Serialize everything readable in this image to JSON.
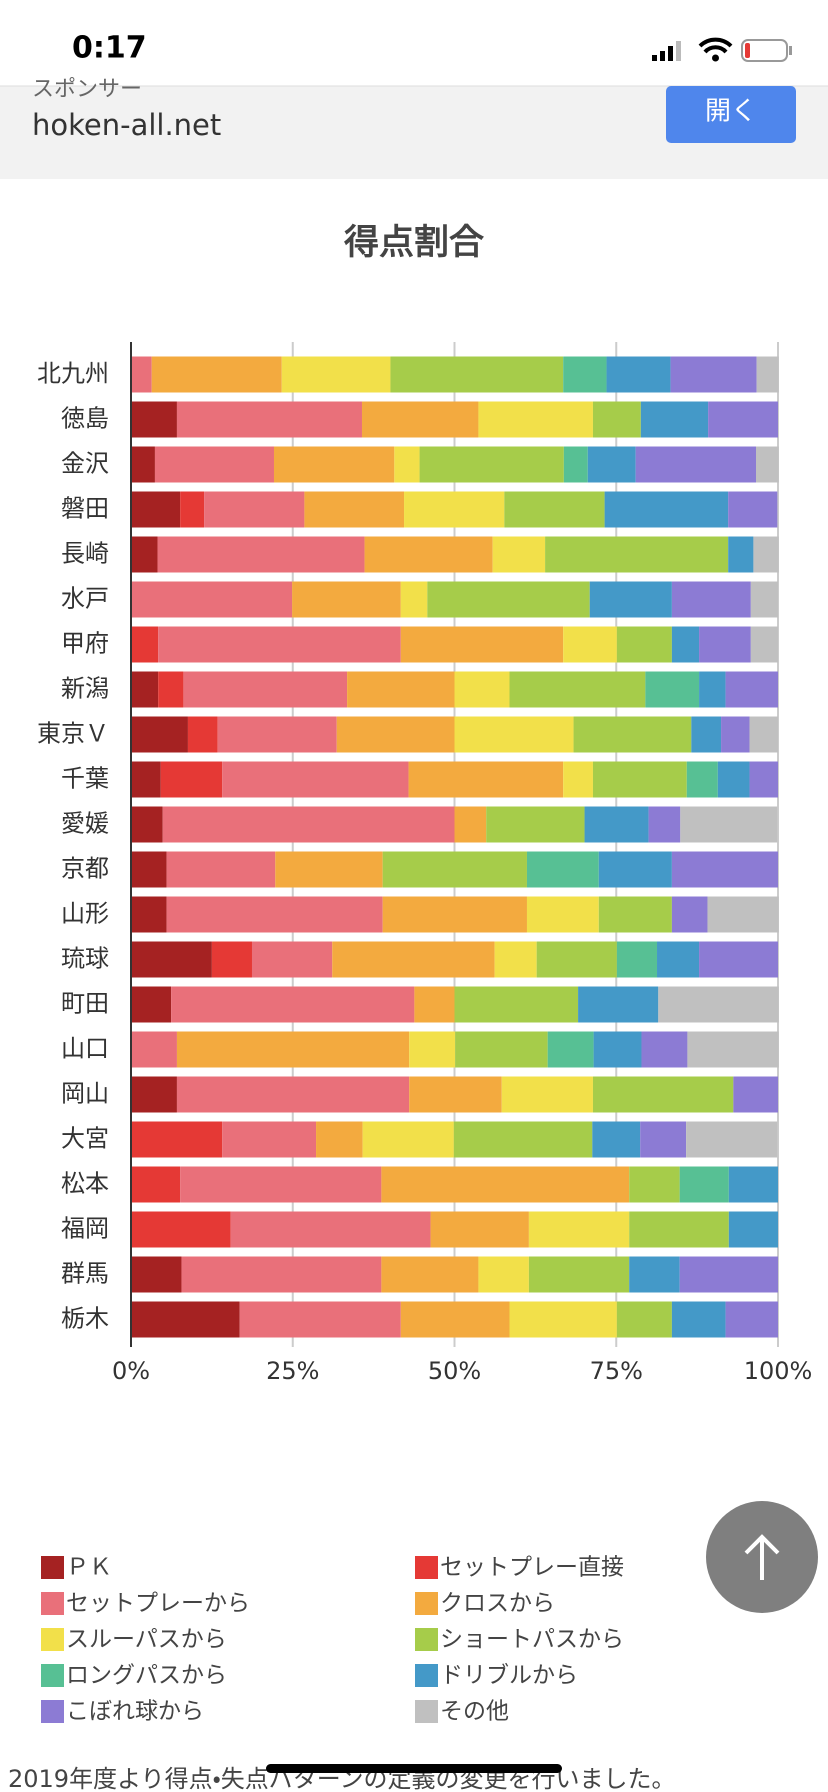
{
  "status_bar": {
    "time": "0:17"
  },
  "ad": {
    "sponsor_label": "スポンサー",
    "domain": "hoken-all.net",
    "button": "開く"
  },
  "chart_data": {
    "type": "bar",
    "orientation": "horizontal",
    "stacked": true,
    "title": "得点割合",
    "categories": [
      "北九州",
      "徳島",
      "金沢",
      "磐田",
      "長崎",
      "水戸",
      "甲府",
      "新潟",
      "東京Ｖ",
      "千葉",
      "愛媛",
      "京都",
      "山形",
      "琉球",
      "町田",
      "山口",
      "岡山",
      "大宮",
      "松本",
      "福岡",
      "群馬",
      "栃木"
    ],
    "series": [
      {
        "name": "ＰＫ",
        "color": "#a52222",
        "values": [
          0,
          7.1,
          3.7,
          7.6,
          4.1,
          0,
          0,
          4.2,
          8.8,
          4.6,
          4.9,
          5.5,
          5.5,
          12.5,
          6.2,
          0,
          7.1,
          0,
          0,
          0,
          7.8,
          16.8
        ]
      },
      {
        "name": "セットプレー直接",
        "color": "#e53935",
        "values": [
          0,
          0,
          0,
          3.7,
          0,
          0,
          4.2,
          3.9,
          4.6,
          9.5,
          0,
          0,
          0,
          6.2,
          0,
          0,
          0,
          14.1,
          7.6,
          15.4,
          0,
          0
        ]
      },
      {
        "name": "セットプレーから",
        "color": "#e9707a",
        "values": [
          3.2,
          28.6,
          18.4,
          15.5,
          32.0,
          24.9,
          37.5,
          25.3,
          18.4,
          28.8,
          45.1,
          16.8,
          33.4,
          12.4,
          37.6,
          7.1,
          35.9,
          14.5,
          31.1,
          30.9,
          30.9,
          24.9
        ]
      },
      {
        "name": "クロスから",
        "color": "#f3aa3f",
        "values": [
          20.1,
          18.0,
          18.6,
          15.4,
          19.8,
          16.8,
          25.1,
          16.6,
          18.2,
          23.9,
          4.9,
          16.6,
          22.3,
          25.1,
          6.2,
          35.9,
          14.3,
          7.2,
          38.3,
          15.2,
          15.0,
          16.8
        ]
      },
      {
        "name": "スルーパスから",
        "color": "#f2e04a",
        "values": [
          16.8,
          17.7,
          3.9,
          15.5,
          8.1,
          4.1,
          8.3,
          8.5,
          18.4,
          4.6,
          0,
          0,
          11.1,
          6.5,
          0,
          7.1,
          14.1,
          14.1,
          0,
          15.5,
          7.8,
          16.6
        ]
      },
      {
        "name": "ショートパスから",
        "color": "#a6cc4a",
        "values": [
          26.7,
          7.4,
          22.3,
          15.5,
          28.3,
          25.1,
          8.5,
          21.0,
          18.2,
          14.5,
          15.2,
          22.3,
          11.3,
          12.4,
          19.1,
          14.3,
          21.7,
          21.4,
          7.8,
          15.4,
          15.5,
          8.5
        ]
      },
      {
        "name": "ロングパスから",
        "color": "#57c094",
        "values": [
          6.7,
          0,
          3.7,
          0,
          0,
          0,
          0,
          8.3,
          0,
          4.8,
          0,
          11.1,
          0,
          6.2,
          0,
          7.1,
          0,
          0,
          7.6,
          0,
          0,
          0
        ]
      },
      {
        "name": "ドリブルから",
        "color": "#4499c8",
        "values": [
          9.9,
          10.4,
          7.4,
          19.1,
          3.9,
          12.7,
          4.2,
          4.1,
          4.6,
          4.9,
          9.9,
          11.3,
          0,
          6.5,
          12.4,
          7.4,
          0,
          7.4,
          7.6,
          7.6,
          7.8,
          8.3
        ]
      },
      {
        "name": "こぼれ球から",
        "color": "#8c7bd4",
        "values": [
          13.3,
          10.8,
          18.6,
          7.6,
          0,
          12.2,
          8.0,
          8.1,
          4.4,
          4.4,
          4.9,
          16.4,
          5.5,
          12.2,
          0,
          7.1,
          6.9,
          7.1,
          0,
          0,
          15.2,
          8.1
        ]
      },
      {
        "name": "その他",
        "color": "#c0c0c0",
        "values": [
          3.4,
          0,
          3.5,
          0,
          3.9,
          4.2,
          4.2,
          0,
          4.4,
          0,
          15.0,
          0,
          11.0,
          0,
          18.6,
          14.1,
          0,
          14.1,
          0,
          0,
          0,
          0
        ]
      }
    ],
    "xlim": [
      0,
      100
    ],
    "xticks": [
      {
        "value": 0,
        "label": "0%"
      },
      {
        "value": 25,
        "label": "25%"
      },
      {
        "value": 50,
        "label": "50%"
      },
      {
        "value": 75,
        "label": "75%"
      },
      {
        "value": 100,
        "label": "100%"
      }
    ],
    "grid": true,
    "legend": "bottom"
  },
  "footer_note": "2019年度より得点・失点パターンの定義の変更を行いました。"
}
